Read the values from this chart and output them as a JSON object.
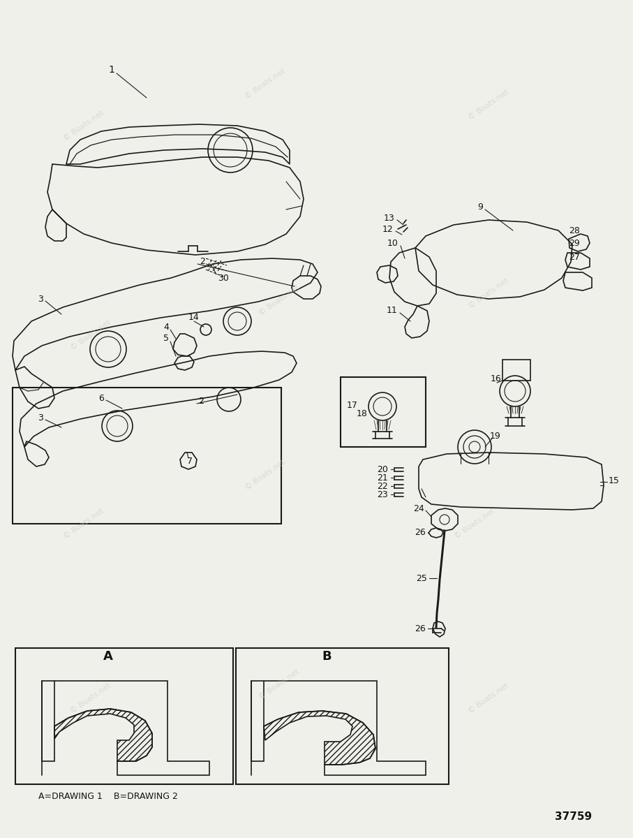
{
  "background_color": "#f0f0eb",
  "watermark_text": "© Boats.net",
  "watermark_color": "#c8c8b8",
  "diagram_number": "37759",
  "footer_text": "A=DRAWING 1    B=DRAWING 2",
  "line_color": "#1a1a1a",
  "lw": 1.2
}
